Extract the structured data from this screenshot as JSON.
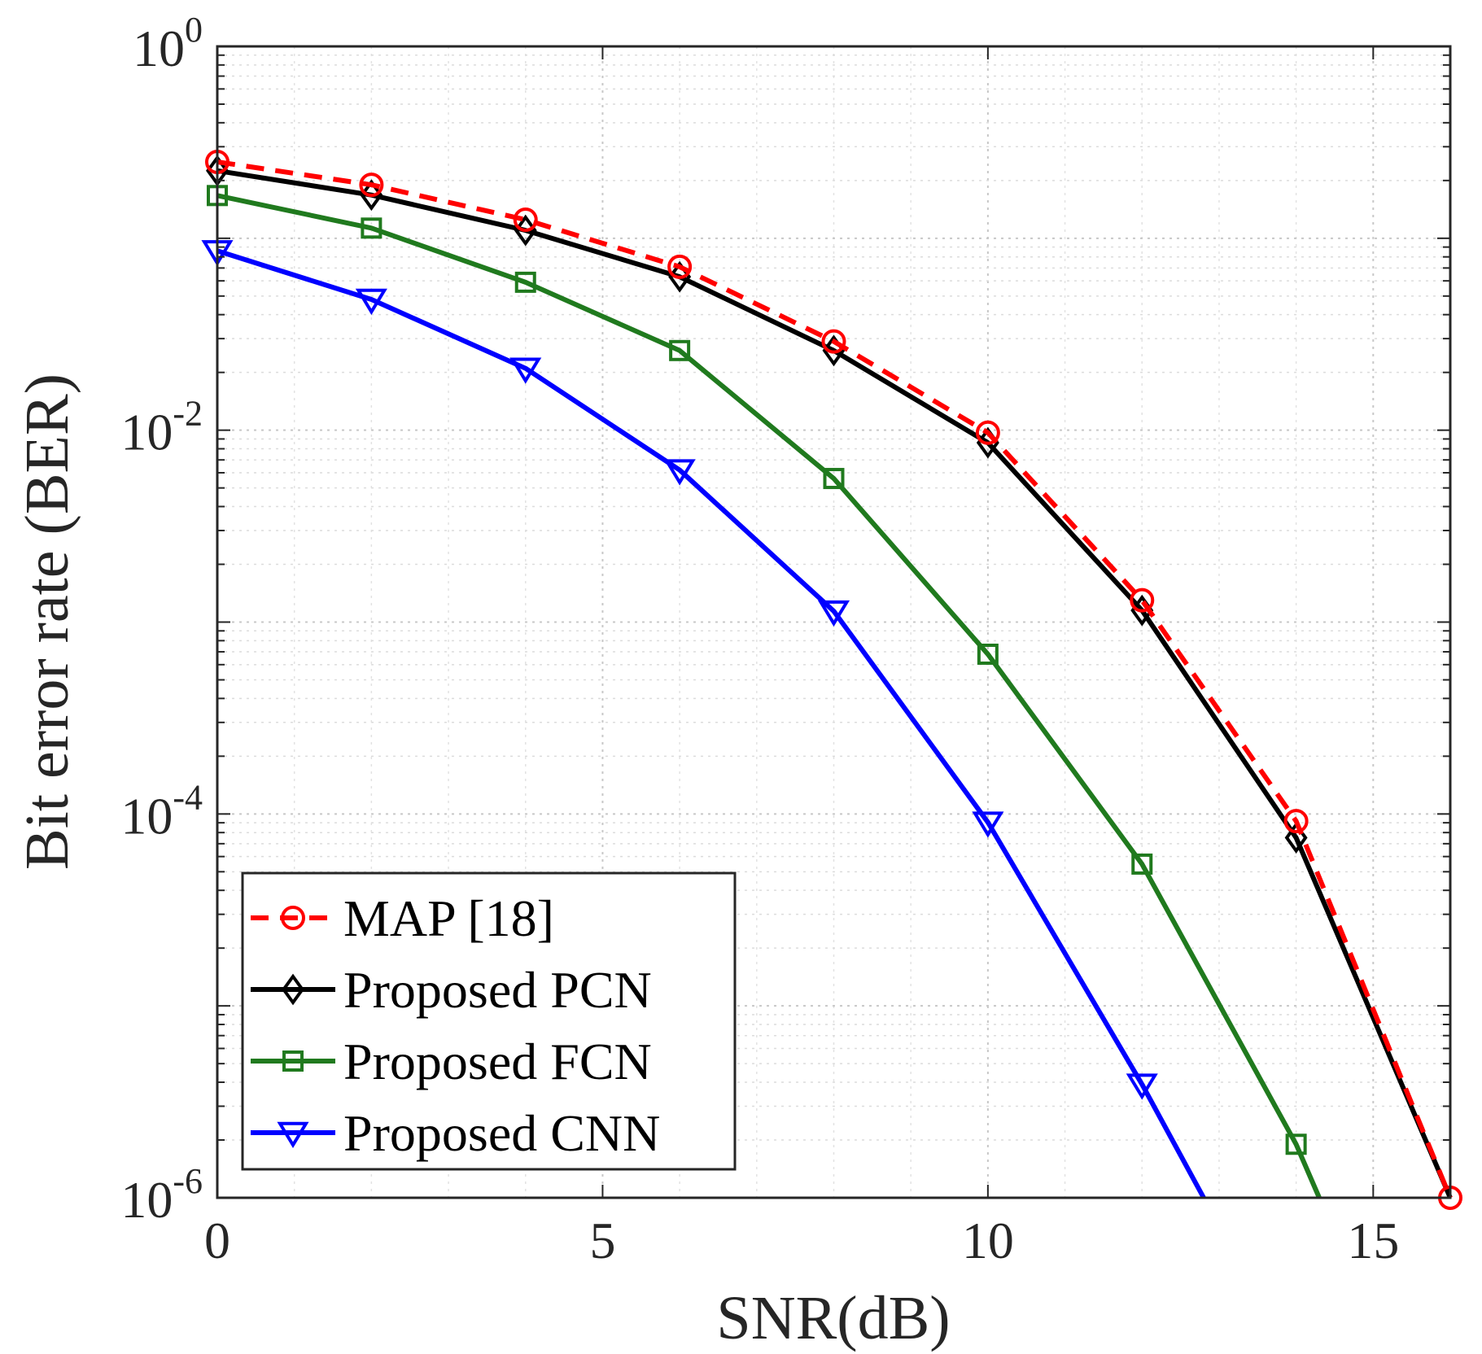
{
  "chart_data": {
    "type": "line",
    "title": "",
    "xlabel": "SNR(dB)",
    "ylabel": "Bit error rate (BER)",
    "xlim": [
      0,
      16
    ],
    "ylim": [
      1e-06,
      1
    ],
    "yscale": "log",
    "grid": true,
    "legend_position": "bottom-left",
    "x_ticks": [
      {
        "value": 0,
        "label": "0"
      },
      {
        "value": 5,
        "label": "5"
      },
      {
        "value": 10,
        "label": "10"
      },
      {
        "value": 15,
        "label": "15"
      }
    ],
    "y_ticks": [
      {
        "value": 1,
        "base": "10",
        "exp": "0"
      },
      {
        "value": 0.01,
        "base": "10",
        "exp": "-2"
      },
      {
        "value": 0.0001,
        "base": "10",
        "exp": "-4"
      },
      {
        "value": 1e-06,
        "base": "10",
        "exp": "-6"
      }
    ],
    "series": [
      {
        "name": "MAP [18]",
        "color": "#ff0000",
        "dashed": true,
        "marker": "circle",
        "x": [
          0,
          2,
          4,
          6,
          8,
          10,
          12,
          14,
          16
        ],
        "y": [
          0.25,
          0.19,
          0.125,
          0.071,
          0.029,
          0.0097,
          0.0013,
          9.18e-05,
          1e-06
        ]
      },
      {
        "name": "Proposed PCN",
        "color": "#000000",
        "dashed": false,
        "marker": "diamond",
        "x": [
          0,
          2,
          4,
          6,
          8,
          10,
          12,
          14,
          16
        ],
        "y": [
          0.225,
          0.168,
          0.11,
          0.063,
          0.026,
          0.0086,
          0.00115,
          7.52e-05,
          1e-06
        ]
      },
      {
        "name": "Proposed FCN",
        "color": "#207a1e",
        "dashed": false,
        "marker": "square",
        "x": [
          0,
          2,
          4,
          6,
          8,
          10,
          12,
          14,
          14.3
        ],
        "y": [
          0.167,
          0.113,
          0.059,
          0.026,
          0.0056,
          0.00068,
          5.48e-05,
          1.9e-06,
          1e-06
        ]
      },
      {
        "name": "Proposed CNN",
        "color": "#0000ff",
        "dashed": false,
        "marker": "triangle-down",
        "x": [
          0,
          2,
          4,
          6,
          8,
          10,
          12,
          12.8
        ],
        "y": [
          0.086,
          0.048,
          0.021,
          0.0062,
          0.00114,
          9.05e-05,
          3.9e-06,
          1e-06
        ]
      }
    ]
  }
}
